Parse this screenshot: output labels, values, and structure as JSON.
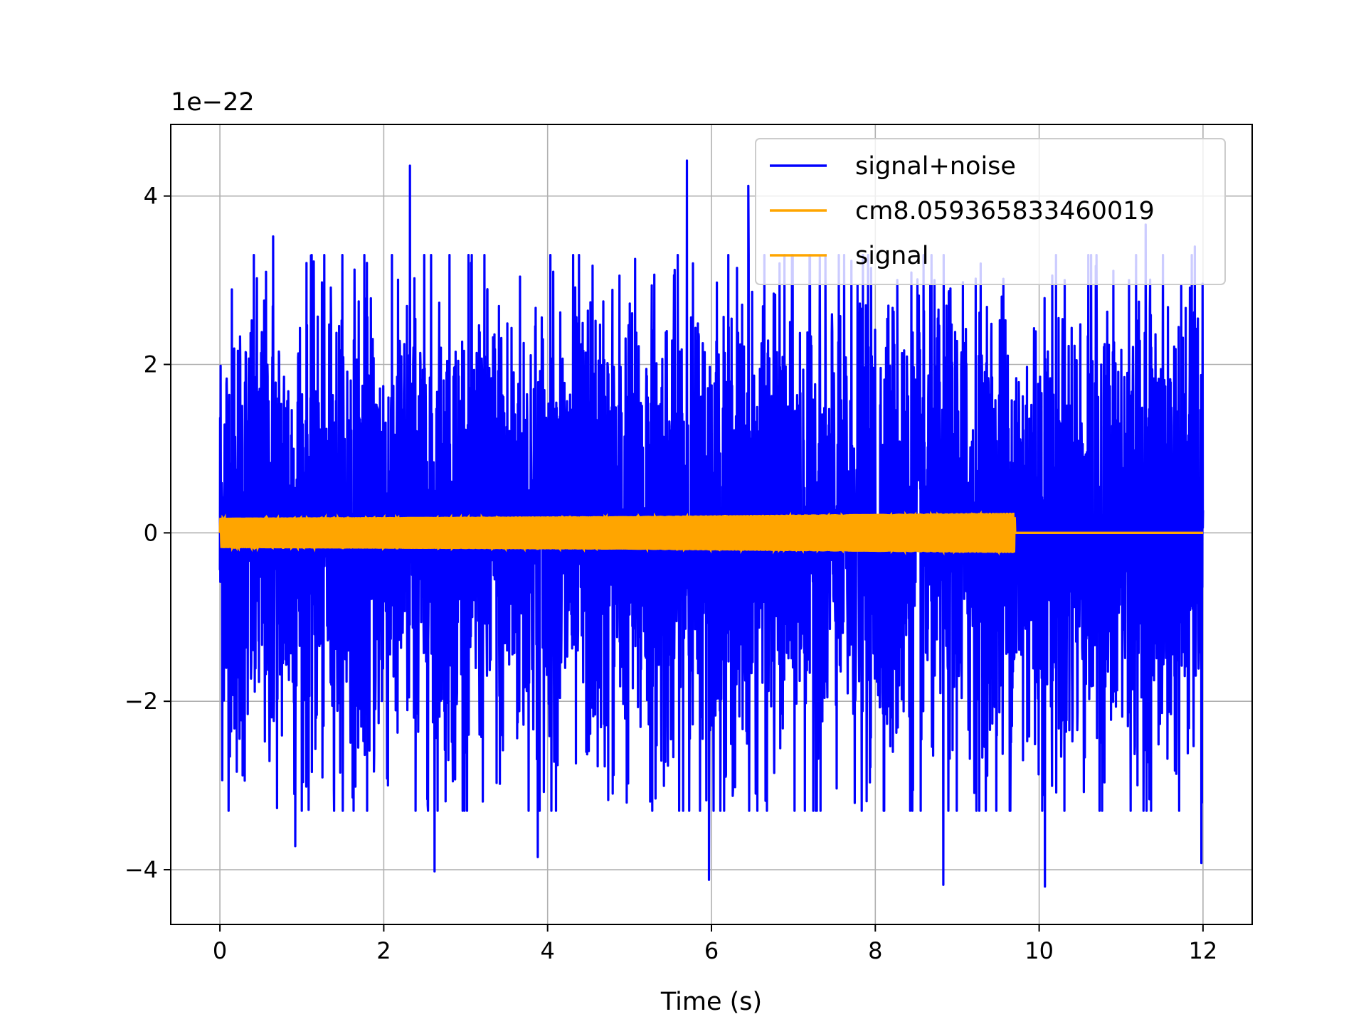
{
  "chart_data": {
    "type": "line",
    "title": "",
    "xlabel": "Time (s)",
    "ylabel": "",
    "y_offset_label": "1e−22",
    "xlim": [
      -0.6,
      12.6
    ],
    "ylim": [
      -4.65,
      4.85
    ],
    "xticks": [
      0,
      2,
      4,
      6,
      8,
      10,
      12
    ],
    "xtick_labels": [
      "0",
      "2",
      "4",
      "6",
      "8",
      "10",
      "12"
    ],
    "yticks": [
      -4,
      -2,
      0,
      2,
      4
    ],
    "ytick_labels": [
      "−4",
      "−2",
      "0",
      "2",
      "4"
    ],
    "grid": true,
    "legend_position": "upper-right",
    "series": [
      {
        "name": "signal+noise",
        "color": "#0000ff",
        "x_range": [
          0,
          12
        ],
        "description_values": {
          "typical_amplitude": 2.3,
          "max": 4.42,
          "min": -4.2
        },
        "peaks": [
          {
            "x": 2.32,
            "y": 4.36
          },
          {
            "x": 5.7,
            "y": 4.42
          },
          {
            "x": 6.45,
            "y": 4.12
          },
          {
            "x": 0.65,
            "y": 3.52
          },
          {
            "x": 11.3,
            "y": 3.66
          },
          {
            "x": 11.9,
            "y": 3.4
          }
        ],
        "troughs": [
          {
            "x": 2.62,
            "y": -4.02
          },
          {
            "x": 5.97,
            "y": -4.12
          },
          {
            "x": 8.83,
            "y": -4.18
          },
          {
            "x": 10.07,
            "y": -4.2
          },
          {
            "x": 3.88,
            "y": -3.85
          },
          {
            "x": 0.92,
            "y": -3.72
          },
          {
            "x": 11.98,
            "y": -3.92
          }
        ]
      },
      {
        "name": "cm8.059365833460019",
        "color": "#ffa500",
        "x_range": [
          0,
          12
        ],
        "values_hint": "zero"
      },
      {
        "name": "signal",
        "color": "#ffa500",
        "x_range": [
          0,
          12
        ],
        "envelope": [
          {
            "x": 0,
            "amp": 0.18
          },
          {
            "x": 5,
            "amp": 0.2
          },
          {
            "x": 9.7,
            "amp": 0.24
          },
          {
            "x": 9.71,
            "amp": 0
          },
          {
            "x": 12,
            "amp": 0
          }
        ]
      }
    ]
  }
}
